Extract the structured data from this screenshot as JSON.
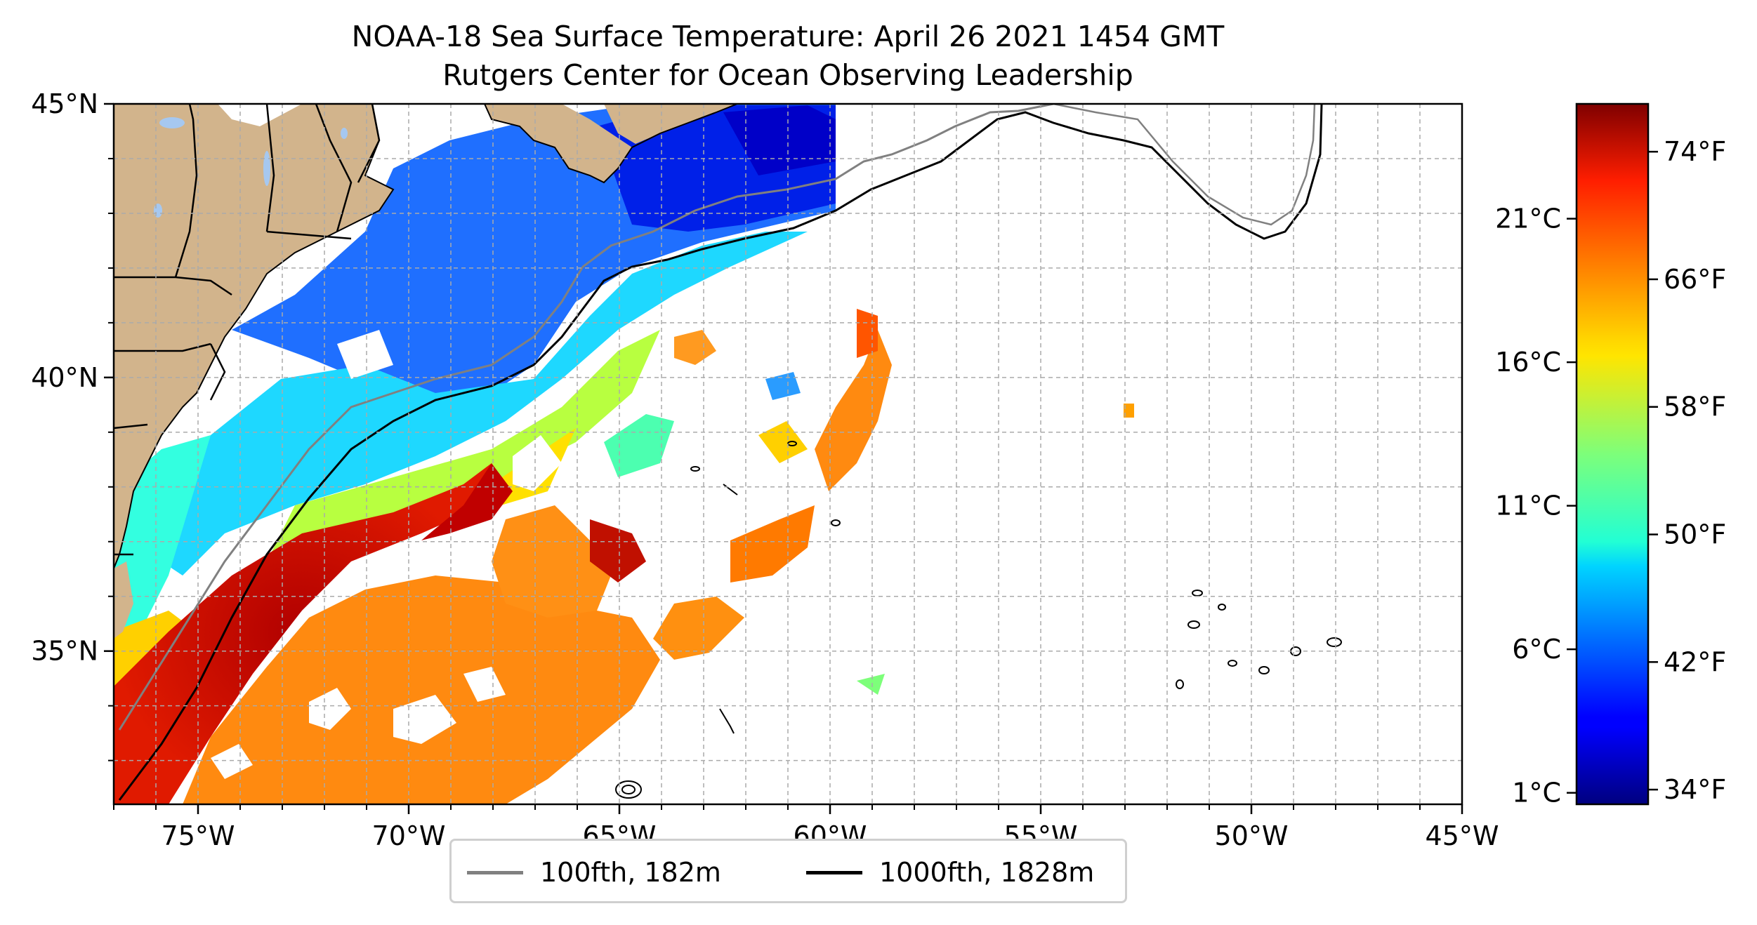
{
  "title_line1": "NOAA-18 Sea Surface Temperature: April 26 2021 1454 GMT",
  "title_line2": "Rutgers Center for Ocean Observing Leadership",
  "map": {
    "lon_range": [
      -77,
      -45
    ],
    "lat_range": [
      32.2,
      45
    ],
    "lon_tick_labels": [
      "75°W",
      "70°W",
      "65°W",
      "60°W",
      "55°W",
      "50°W",
      "45°W"
    ],
    "lat_tick_labels": [
      "35°N",
      "40°N",
      "45°N"
    ],
    "gridlines": true,
    "land_color": "#d2b48c",
    "ocean_nodata_color": "#ffffff"
  },
  "colorbar": {
    "colormap": "jet",
    "celsius_labels": [
      "1°C",
      "6°C",
      "11°C",
      "16°C",
      "21°C"
    ],
    "fahrenheit_labels": [
      "34°F",
      "42°F",
      "50°F",
      "58°F",
      "66°F",
      "74°F"
    ]
  },
  "legend": {
    "items": [
      {
        "label": "100fth, 182m",
        "color": "#808080"
      },
      {
        "label": "1000fth, 1828m",
        "color": "#000000"
      }
    ],
    "placement": "bottom-center"
  }
}
